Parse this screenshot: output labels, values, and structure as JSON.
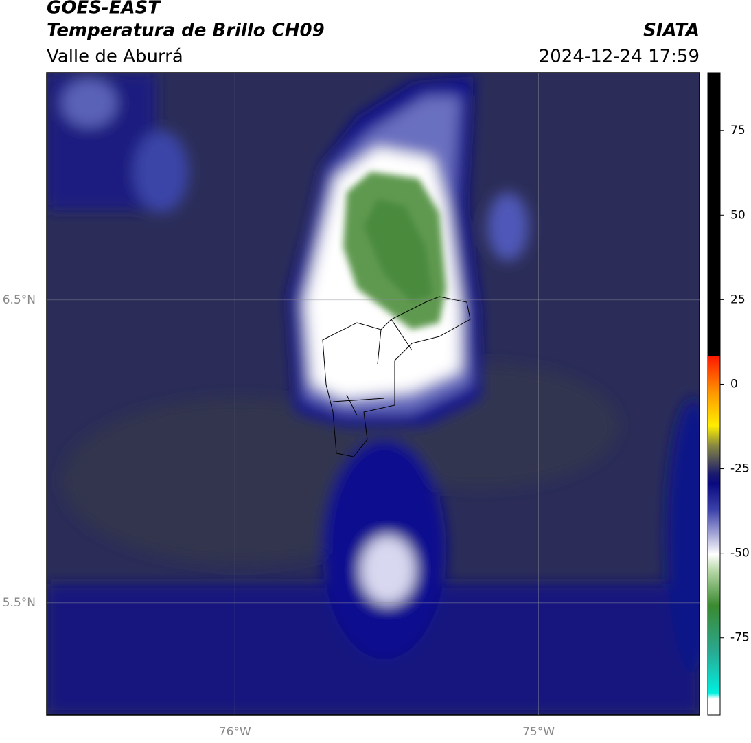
{
  "header": {
    "title": "GOES-EAST",
    "subtitle": "Temperatura de Brillo CH09",
    "region": "Valle de Aburrá",
    "source": "SIATA",
    "datetime": "2024-12-24 17:59"
  },
  "map": {
    "lon_range": [
      -76.62,
      -74.47
    ],
    "lat_range": [
      5.13,
      7.25
    ],
    "lat_ticks": [
      {
        "value": 6.5,
        "label": "6.5°N"
      },
      {
        "value": 5.5,
        "label": "5.5°N"
      }
    ],
    "lon_ticks": [
      {
        "value": -76,
        "label": "76°W"
      },
      {
        "value": -75,
        "label": "75°W"
      }
    ]
  },
  "colorbar": {
    "range": [
      -97.8,
      92.1
    ],
    "ticks": [
      75,
      50,
      25,
      0,
      -25,
      -50,
      -75
    ]
  }
}
